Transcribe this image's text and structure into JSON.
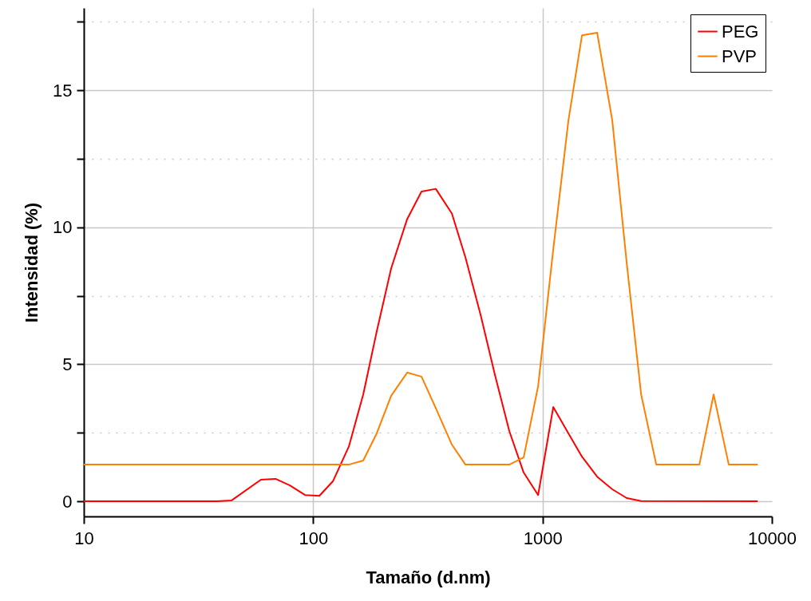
{
  "chart_data": {
    "type": "line",
    "xlabel": "Tamaño (d.nm)",
    "ylabel": "Intensidad (%)",
    "log": "x",
    "xlim": [
      10,
      10000
    ],
    "xticks": [
      10,
      100,
      1000,
      10000
    ],
    "ylim": [
      -0.55,
      18
    ],
    "yticks": [
      0,
      {
        "value": 2.5,
        "label": null
      },
      5,
      {
        "value": 7.5,
        "label": null
      },
      10,
      {
        "value": 12.5,
        "label": null
      },
      15,
      {
        "value": 17.5,
        "label": null
      }
    ],
    "grid": true,
    "legend": "top right",
    "marker": "none",
    "line_style": "solid",
    "series": [
      {
        "name": "PEG",
        "color": "#ff0000",
        "x": [
          10,
          38.1,
          44,
          59.2,
          68.5,
          79.1,
          92.1,
          106.4,
          121.9,
          143.1,
          165.3,
          189.3,
          218.8,
          257,
          296.7,
          342.5,
          402.5,
          461.2,
          537,
          620.8,
          716.6,
          827.4,
          956.7,
          1114,
          1297,
          1486,
          1730,
          2014,
          2328,
          2691,
          8669
        ],
        "values": [
          0,
          0,
          0.03,
          0.79,
          0.82,
          0.58,
          0.23,
          0.2,
          0.73,
          2.0,
          3.9,
          6.2,
          8.5,
          10.3,
          11.3,
          11.4,
          10.5,
          8.9,
          6.8,
          4.6,
          2.56,
          1.05,
          0.23,
          3.44,
          2.48,
          1.63,
          0.9,
          0.44,
          0.12,
          0.01,
          0
        ]
      },
      {
        "name": "PVP",
        "color": "#ff8000",
        "x": [
          10,
          143.1,
          165.3,
          189.3,
          218.8,
          257,
          296.7,
          342.5,
          402.5,
          461.2,
          716.6,
          827.4,
          956.7,
          1114,
          1297,
          1486,
          1730,
          2014,
          2328,
          2691,
          3133,
          4829,
          5572,
          6486,
          8669
        ],
        "values": [
          1.34,
          1.34,
          1.49,
          2.48,
          3.85,
          4.7,
          4.55,
          3.4,
          2.07,
          1.34,
          1.34,
          1.6,
          4.2,
          9.2,
          13.9,
          17.0,
          17.1,
          13.9,
          8.7,
          3.9,
          1.34,
          1.34,
          3.9,
          1.34,
          1.34
        ]
      }
    ]
  }
}
